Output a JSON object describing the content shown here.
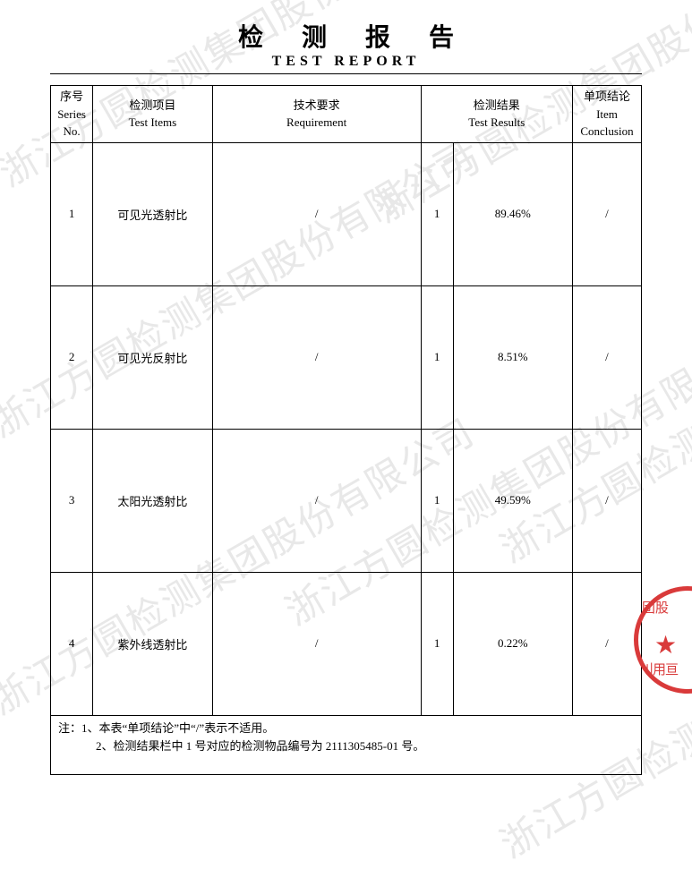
{
  "title": {
    "cn": "检 测 报 告",
    "en": "TEST REPORT"
  },
  "watermark_text": "浙江方圆检测集团股份有限公司",
  "columns": {
    "no": "序号\nSeries\nNo.",
    "item": "检测项目\nTest Items",
    "req": "技术要求\nRequirement",
    "res": "检测结果\nTest Results",
    "conc": "单项结论\nItem\nConclusion"
  },
  "rows": [
    {
      "no": "1",
      "item": "可见光透射比",
      "req": "/",
      "sub": "1",
      "res": "89.46%",
      "conc": "/"
    },
    {
      "no": "2",
      "item": "可见光反射比",
      "req": "/",
      "sub": "1",
      "res": "8.51%",
      "conc": "/"
    },
    {
      "no": "3",
      "item": "太阳光透射比",
      "req": "/",
      "sub": "1",
      "res": "49.59%",
      "conc": "/"
    },
    {
      "no": "4",
      "item": "紫外线透射比",
      "req": "/",
      "sub": "1",
      "res": "0.22%",
      "conc": "/"
    }
  ],
  "notes": {
    "line1": "注：1、本表“单项结论”中“/”表示不适用。",
    "line2": "2、检测结果栏中 1 号对应的检测物品编号为 2111305485-01 号。"
  },
  "stamp": {
    "top": "团股",
    "bot": "刂用亘"
  }
}
